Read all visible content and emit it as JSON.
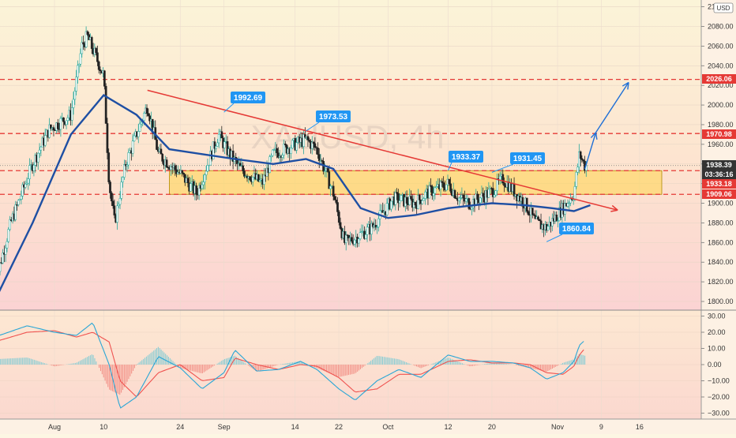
{
  "symbol": {
    "watermark": "XAUUSD, 4h",
    "currency": "USD"
  },
  "colors": {
    "candle_up": "#26a69a",
    "candle_down": "#222222",
    "ma_line": "#1e4fa3",
    "trendline": "#e53935",
    "forecast_arrow": "#1e6fd6",
    "zone_fill": "#ffd54f",
    "level_line": "#e53935",
    "callout_bg": "#2196f3",
    "macd_line": "#29a6d6",
    "signal_line": "#ef5350",
    "hist_up": "#80cbd4",
    "hist_down": "#f28b82"
  },
  "chart_data": [
    {
      "type": "candlestick",
      "timeframe": "4h",
      "ylim": [
        1780,
        2100
      ],
      "y_ticks": [
        1800,
        1820,
        1840,
        1860,
        1880,
        1900,
        1920,
        1940,
        1960,
        1980,
        2000,
        2020,
        2040,
        2060,
        2080,
        2100
      ],
      "x_tick_labels": [
        "Aug",
        "10",
        "24",
        "Sep",
        "14",
        "22",
        "Oct",
        "12",
        "20",
        "Nov",
        "9",
        "16"
      ],
      "approx_close_path": [
        [
          "Jul 21",
          1815
        ],
        [
          "Jul 24",
          1880
        ],
        [
          "Jul 28",
          1940
        ],
        [
          "Jul 31",
          1975
        ],
        [
          "Aug 4",
          1990
        ],
        [
          "Aug 6",
          2060
        ],
        [
          "Aug 7",
          2070
        ],
        [
          "Aug 10",
          2030
        ],
        [
          "Aug 11",
          1920
        ],
        [
          "Aug 12",
          1880
        ],
        [
          "Aug 14",
          1940
        ],
        [
          "Aug 18",
          2000
        ],
        [
          "Aug 20",
          1950
        ],
        [
          "Aug 24",
          1930
        ],
        [
          "Aug 27",
          1910
        ],
        [
          "Aug 31",
          1970
        ],
        [
          "Sep 2",
          1950
        ],
        [
          "Sep 4",
          1935
        ],
        [
          "Sep 8",
          1920
        ],
        [
          "Sep 10",
          1950
        ],
        [
          "Sep 14",
          1960
        ],
        [
          "Sep 16",
          1965
        ],
        [
          "Sep 18",
          1955
        ],
        [
          "Sep 21",
          1910
        ],
        [
          "Sep 23",
          1860
        ],
        [
          "Sep 25",
          1865
        ],
        [
          "Sep 28",
          1875
        ],
        [
          "Sep 30",
          1890
        ],
        [
          "Oct 2",
          1905
        ],
        [
          "Oct 6",
          1900
        ],
        [
          "Oct 8",
          1910
        ],
        [
          "Oct 12",
          1920
        ],
        [
          "Oct 14",
          1905
        ],
        [
          "Oct 16",
          1900
        ],
        [
          "Oct 20",
          1912
        ],
        [
          "Oct 22",
          1925
        ],
        [
          "Oct 26",
          1900
        ],
        [
          "Oct 28",
          1880
        ],
        [
          "Oct 30",
          1875
        ],
        [
          "Nov 2",
          1895
        ],
        [
          "Nov 4",
          1910
        ],
        [
          "Nov 5",
          1950
        ],
        [
          "Nov 6",
          1938
        ]
      ],
      "moving_average_path": [
        [
          "Jul 21",
          1800
        ],
        [
          "Jul 28",
          1880
        ],
        [
          "Aug 4",
          1970
        ],
        [
          "Aug 10",
          2010
        ],
        [
          "Aug 16",
          1990
        ],
        [
          "Aug 22",
          1955
        ],
        [
          "Aug 28",
          1950
        ],
        [
          "Sep 3",
          1945
        ],
        [
          "Sep 10",
          1940
        ],
        [
          "Sep 16",
          1945
        ],
        [
          "Sep 21",
          1935
        ],
        [
          "Sep 26",
          1895
        ],
        [
          "Oct 1",
          1885
        ],
        [
          "Oct 6",
          1888
        ],
        [
          "Oct 12",
          1895
        ],
        [
          "Oct 20",
          1900
        ],
        [
          "Oct 26",
          1898
        ],
        [
          "Oct 31",
          1895
        ],
        [
          "Nov 4",
          1892
        ],
        [
          "Nov 7",
          1898
        ]
      ],
      "horizontal_levels": [
        2026.06,
        1970.98,
        1933.18,
        1909.06
      ],
      "support_resistance_zone": [
        1909.06,
        1933.18
      ],
      "price_axis_tags": [
        {
          "label": "2026.06",
          "value": 2026.06,
          "style": "red"
        },
        {
          "label": "1970.98",
          "value": 1970.98,
          "style": "red"
        },
        {
          "label": "1938.39",
          "value": 1938.39,
          "style": "dark"
        },
        {
          "label": "03:36:16",
          "value": 1928.5,
          "style": "dark"
        },
        {
          "label": "1933.18",
          "value": 1933.18,
          "style": "red"
        },
        {
          "label": "1909.06",
          "value": 1909.06,
          "style": "red"
        }
      ],
      "callouts": [
        {
          "label": "1992.69",
          "date": "Sep 2",
          "value": 1992.69,
          "anchor_date": "Sep 1",
          "anchor_value": 1992.69
        },
        {
          "label": "1973.53",
          "date": "Sep 17",
          "value": 1973.53,
          "anchor_date": "Sep 16",
          "anchor_value": 1973.53
        },
        {
          "label": "1933.37",
          "date": "Oct 13",
          "value": 1933.37,
          "anchor_date": "Oct 12",
          "anchor_value": 1933.37
        },
        {
          "label": "1931.45",
          "date": "Oct 21",
          "value": 1931.45,
          "anchor_date": "Oct 20",
          "anchor_value": 1931.45
        },
        {
          "label": "1860.84",
          "date": "Nov 2",
          "value": 1860.84,
          "anchor_date": "Oct 30",
          "anchor_value": 1860.84
        }
      ],
      "trendline": {
        "from": [
          "Aug 18",
          2015
        ],
        "to": [
          "Nov 12",
          1893
        ]
      },
      "forecast_path": [
        [
          "Nov 6",
          1935
        ],
        [
          "Nov 8",
          1972
        ],
        [
          "Nov 14",
          2023
        ]
      ]
    },
    {
      "type": "line",
      "indicator": "MACD",
      "ylim": [
        -30,
        30
      ],
      "y_ticks": [
        -30,
        -20,
        -10,
        0,
        10,
        20,
        30
      ],
      "y_tick_labels": [
        "−30.00",
        "−20.00",
        "−10.00",
        "0.00",
        "10.00",
        "20.00",
        "30.00"
      ],
      "series": [
        {
          "key": "macd",
          "values": [
            [
              "Jul 21",
              17
            ],
            [
              "Jul 27",
              24
            ],
            [
              "Aug 1",
              20
            ],
            [
              "Aug 5",
              18
            ],
            [
              "Aug 8",
              26
            ],
            [
              "Aug 11",
              0
            ],
            [
              "Aug 13",
              -27
            ],
            [
              "Aug 16",
              -20
            ],
            [
              "Aug 20",
              5
            ],
            [
              "Aug 24",
              -2
            ],
            [
              "Aug 28",
              -15
            ],
            [
              "Sep 1",
              -5
            ],
            [
              "Sep 3",
              9
            ],
            [
              "Sep 7",
              -4
            ],
            [
              "Sep 11",
              -3
            ],
            [
              "Sep 15",
              2
            ],
            [
              "Sep 18",
              -3
            ],
            [
              "Sep 22",
              -15
            ],
            [
              "Sep 25",
              -22
            ],
            [
              "Sep 29",
              -10
            ],
            [
              "Oct 3",
              -3
            ],
            [
              "Oct 7",
              -8
            ],
            [
              "Oct 12",
              6
            ],
            [
              "Oct 16",
              2
            ],
            [
              "Oct 20",
              2
            ],
            [
              "Oct 24",
              1
            ],
            [
              "Oct 27",
              -2
            ],
            [
              "Oct 30",
              -9
            ],
            [
              "Nov 2",
              -5
            ],
            [
              "Nov 4",
              2
            ],
            [
              "Nov 5",
              12
            ],
            [
              "Nov 6",
              15
            ]
          ]
        },
        {
          "key": "signal",
          "values": [
            [
              "Jul 21",
              14
            ],
            [
              "Jul 27",
              20
            ],
            [
              "Aug 1",
              21
            ],
            [
              "Aug 5",
              17
            ],
            [
              "Aug 8",
              20
            ],
            [
              "Aug 11",
              14
            ],
            [
              "Aug 13",
              -10
            ],
            [
              "Aug 16",
              -20
            ],
            [
              "Aug 20",
              -5
            ],
            [
              "Aug 24",
              0
            ],
            [
              "Aug 28",
              -10
            ],
            [
              "Sep 1",
              -8
            ],
            [
              "Sep 3",
              4
            ],
            [
              "Sep 7",
              0
            ],
            [
              "Sep 11",
              -3
            ],
            [
              "Sep 15",
              0
            ],
            [
              "Sep 18",
              -1
            ],
            [
              "Sep 22",
              -8
            ],
            [
              "Sep 25",
              -17
            ],
            [
              "Sep 29",
              -15
            ],
            [
              "Oct 3",
              -6
            ],
            [
              "Oct 7",
              -6
            ],
            [
              "Oct 12",
              2
            ],
            [
              "Oct 16",
              3
            ],
            [
              "Oct 20",
              1
            ],
            [
              "Oct 24",
              1
            ],
            [
              "Oct 27",
              0
            ],
            [
              "Oct 30",
              -5
            ],
            [
              "Nov 2",
              -6
            ],
            [
              "Nov 4",
              -1
            ],
            [
              "Nov 5",
              6
            ],
            [
              "Nov 6",
              10
            ]
          ]
        }
      ]
    }
  ]
}
